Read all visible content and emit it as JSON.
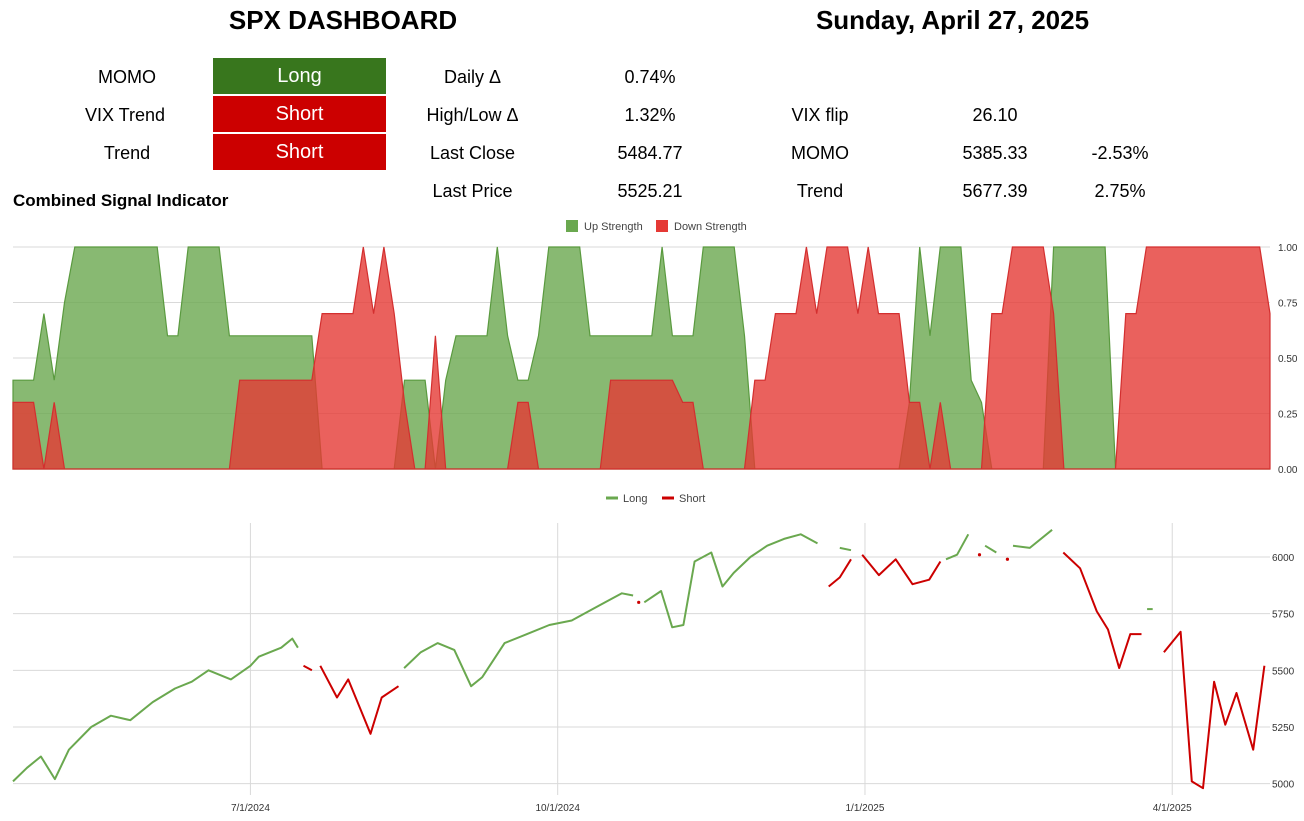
{
  "header": {
    "title": "SPX DASHBOARD",
    "date": "Sunday, April 27, 2025"
  },
  "signals": [
    {
      "label": "MOMO",
      "value": "Long",
      "color": "#38761d"
    },
    {
      "label": "VIX Trend",
      "value": "Short",
      "color": "#cc0000"
    },
    {
      "label": "Trend",
      "value": "Short",
      "color": "#cc0000"
    }
  ],
  "stats": {
    "daily_label": "Daily Δ",
    "daily_value": "0.74%",
    "highlow_label": "High/Low Δ",
    "highlow_value": "1.32%",
    "lastclose_label": "Last Close",
    "lastclose_value": "5484.77",
    "lastprice_label": "Last Price",
    "lastprice_value": "5525.21"
  },
  "levels": {
    "vixflip_label": "VIX flip",
    "vixflip_value": "26.10",
    "momo_label": "MOMO",
    "momo_value": "5385.33",
    "momo_pct": "-2.53%",
    "trend_label": "Trend",
    "trend_value": "5677.39",
    "trend_pct": "2.75%"
  },
  "combined_title": "Combined Signal Indicator",
  "chart_data": [
    {
      "type": "area",
      "legend": [
        "Up Strength",
        "Down Strength"
      ],
      "legend_position": "top-center",
      "colors": {
        "up": "#6aa84f",
        "down": "#e53935"
      },
      "ylim": [
        0,
        1
      ],
      "y_ticks": [
        "0.00",
        "0.25",
        "0.50",
        "0.75",
        "1.00"
      ],
      "grid": true,
      "series": [
        {
          "name": "Up Strength",
          "values": [
            0.4,
            0.4,
            0.4,
            0.7,
            0.4,
            0.75,
            1,
            1,
            1,
            1,
            1,
            1,
            1,
            1,
            1,
            0.6,
            0.6,
            1,
            1,
            1,
            1,
            0.6,
            0.6,
            0.6,
            0.6,
            0.6,
            0.6,
            0.6,
            0.6,
            0.6,
            0,
            0,
            0,
            0,
            0,
            0,
            0,
            0,
            0.4,
            0.4,
            0.4,
            0,
            0.4,
            0.6,
            0.6,
            0.6,
            0.6,
            1,
            0.6,
            0.4,
            0.4,
            0.6,
            1,
            1,
            1,
            1,
            0.6,
            0.6,
            0.6,
            0.6,
            0.6,
            0.6,
            0.6,
            1,
            0.6,
            0.6,
            0.6,
            1,
            1,
            1,
            1,
            0.6,
            0,
            0,
            0,
            0,
            0,
            0,
            0,
            0,
            0,
            0,
            0,
            0,
            0,
            0,
            0,
            0.3,
            1,
            0.6,
            1,
            1,
            1,
            0.4,
            0.3,
            0,
            0,
            0,
            0,
            0,
            0,
            1,
            1,
            1,
            1,
            1,
            1,
            0,
            0,
            0,
            0,
            0,
            0,
            0,
            0,
            0,
            0,
            0,
            0,
            0,
            0,
            0,
            0
          ]
        },
        {
          "name": "Down Strength",
          "values": [
            0.3,
            0.3,
            0.3,
            0,
            0.3,
            0,
            0,
            0,
            0,
            0,
            0,
            0,
            0,
            0,
            0,
            0,
            0,
            0,
            0,
            0,
            0,
            0,
            0.4,
            0.4,
            0.4,
            0.4,
            0.4,
            0.4,
            0.4,
            0.4,
            0.7,
            0.7,
            0.7,
            0.7,
            1,
            0.7,
            1,
            0.7,
            0.3,
            0,
            0,
            0.6,
            0,
            0,
            0,
            0,
            0,
            0,
            0,
            0.3,
            0.3,
            0,
            0,
            0,
            0,
            0,
            0,
            0,
            0.4,
            0.4,
            0.4,
            0.4,
            0.4,
            0.4,
            0.4,
            0.3,
            0.3,
            0,
            0,
            0,
            0,
            0,
            0.4,
            0.4,
            0.7,
            0.7,
            0.7,
            1,
            0.7,
            1,
            1,
            1,
            0.7,
            1,
            0.7,
            0.7,
            0.7,
            0.3,
            0.3,
            0,
            0.3,
            0,
            0,
            0,
            0,
            0.7,
            0.7,
            1,
            1,
            1,
            1,
            0.7,
            0,
            0,
            0,
            0,
            0,
            0,
            0.7,
            0.7,
            1,
            1,
            1,
            1,
            1,
            1,
            1,
            1,
            1,
            1,
            1,
            1,
            0.7
          ]
        }
      ]
    },
    {
      "type": "line",
      "legend": [
        "Long",
        "Short"
      ],
      "legend_position": "top-center",
      "colors": {
        "long": "#6aa84f",
        "short": "#cc0000"
      },
      "ylim": [
        4950,
        6150
      ],
      "y_ticks": [
        "5000",
        "5250",
        "5500",
        "5750",
        "6000"
      ],
      "x_ticks": [
        "7/1/2024",
        "10/1/2024",
        "1/1/2025",
        "4/1/2025"
      ],
      "grid": true,
      "segments": [
        {
          "state": "Long",
          "points": [
            [
              0,
              5010
            ],
            [
              5,
              5070
            ],
            [
              10,
              5120
            ],
            [
              15,
              5020
            ],
            [
              20,
              5150
            ],
            [
              28,
              5250
            ],
            [
              35,
              5300
            ],
            [
              42,
              5280
            ],
            [
              50,
              5360
            ],
            [
              58,
              5420
            ],
            [
              64,
              5450
            ],
            [
              70,
              5500
            ],
            [
              78,
              5460
            ],
            [
              85,
              5520
            ],
            [
              88,
              5560
            ],
            [
              96,
              5600
            ],
            [
              100,
              5640
            ],
            [
              102,
              5600
            ]
          ]
        },
        {
          "state": "Short",
          "points": [
            [
              104,
              5520
            ],
            [
              107,
              5500
            ]
          ]
        },
        {
          "state": "Short",
          "points": [
            [
              110,
              5520
            ],
            [
              116,
              5380
            ],
            [
              120,
              5460
            ],
            [
              124,
              5340
            ],
            [
              128,
              5220
            ],
            [
              132,
              5380
            ],
            [
              138,
              5430
            ]
          ]
        },
        {
          "state": "Long",
          "points": [
            [
              140,
              5510
            ],
            [
              146,
              5580
            ],
            [
              152,
              5620
            ],
            [
              158,
              5590
            ],
            [
              164,
              5430
            ],
            [
              168,
              5470
            ],
            [
              176,
              5620
            ],
            [
              184,
              5660
            ],
            [
              192,
              5700
            ],
            [
              200,
              5720
            ],
            [
              206,
              5760
            ],
            [
              212,
              5800
            ],
            [
              218,
              5840
            ],
            [
              222,
              5830
            ]
          ]
        },
        {
          "state": "Short",
          "points": [
            [
              224,
              5800
            ]
          ]
        },
        {
          "state": "Long",
          "points": [
            [
              226,
              5800
            ],
            [
              232,
              5850
            ],
            [
              236,
              5690
            ],
            [
              240,
              5700
            ],
            [
              244,
              5980
            ],
            [
              250,
              6020
            ],
            [
              254,
              5870
            ],
            [
              258,
              5930
            ],
            [
              264,
              6000
            ],
            [
              270,
              6050
            ],
            [
              276,
              6080
            ],
            [
              282,
              6100
            ],
            [
              288,
              6060
            ]
          ]
        },
        {
          "state": "Long",
          "points": [
            [
              296,
              6040
            ],
            [
              300,
              6030
            ]
          ]
        },
        {
          "state": "Short",
          "points": [
            [
              292,
              5870
            ],
            [
              296,
              5910
            ],
            [
              300,
              5990
            ]
          ]
        },
        {
          "state": "Short",
          "points": [
            [
              304,
              6010
            ],
            [
              310,
              5920
            ],
            [
              316,
              5990
            ],
            [
              322,
              5880
            ],
            [
              328,
              5900
            ],
            [
              332,
              5980
            ]
          ]
        },
        {
          "state": "Long",
          "points": [
            [
              334,
              5990
            ],
            [
              338,
              6010
            ],
            [
              342,
              6100
            ]
          ]
        },
        {
          "state": "Short",
          "points": [
            [
              346,
              6010
            ]
          ]
        },
        {
          "state": "Long",
          "points": [
            [
              348,
              6050
            ],
            [
              352,
              6020
            ]
          ]
        },
        {
          "state": "Short",
          "points": [
            [
              356,
              5990
            ]
          ]
        },
        {
          "state": "Long",
          "points": [
            [
              358,
              6050
            ],
            [
              364,
              6040
            ],
            [
              372,
              6120
            ]
          ]
        },
        {
          "state": "Short",
          "points": [
            [
              376,
              6020
            ],
            [
              382,
              5950
            ],
            [
              388,
              5760
            ],
            [
              392,
              5680
            ],
            [
              396,
              5510
            ],
            [
              400,
              5660
            ],
            [
              404,
              5660
            ]
          ]
        },
        {
          "state": "Long",
          "points": [
            [
              406,
              5770
            ],
            [
              408,
              5770
            ]
          ]
        },
        {
          "state": "Short",
          "points": [
            [
              412,
              5580
            ],
            [
              418,
              5670
            ],
            [
              422,
              5010
            ],
            [
              426,
              4980
            ],
            [
              430,
              5450
            ],
            [
              434,
              5260
            ],
            [
              438,
              5400
            ],
            [
              444,
              5150
            ],
            [
              448,
              5520
            ]
          ]
        }
      ]
    }
  ]
}
